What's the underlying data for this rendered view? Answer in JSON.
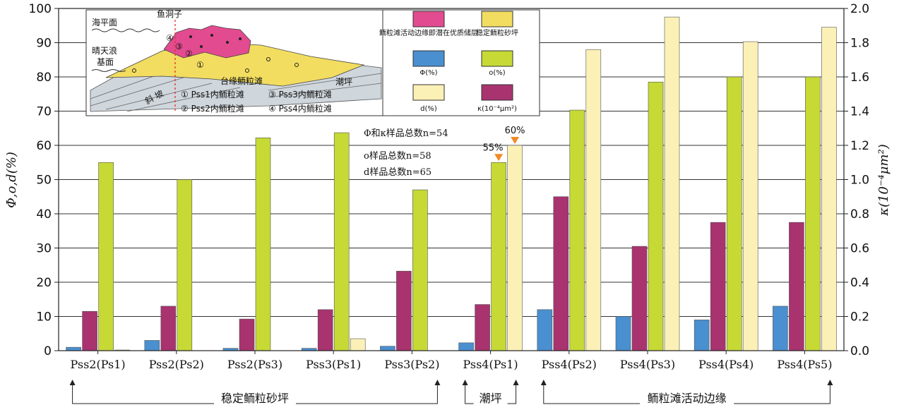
{
  "chart_data": {
    "type": "bar",
    "categories": [
      "Pss2(Ps1)",
      "Pss2(Ps2)",
      "Pss2(Ps3)",
      "Pss3(Ps1)",
      "Pss3(Ps2)",
      "Pss4(Ps1)",
      "Pss4(Ps2)",
      "Pss4(Ps3)",
      "Pss4(Ps4)",
      "Pss4(Ps5)"
    ],
    "series": [
      {
        "name": "Φ(%)",
        "axis": "left",
        "color": "#4a8fcf",
        "values": [
          1,
          3,
          0.7,
          0.7,
          1.3,
          2.3,
          12,
          10,
          9,
          13
        ]
      },
      {
        "name": "κ(10⁻⁴μm²)",
        "axis": "right",
        "color": "#a8336f",
        "values": [
          0.23,
          0.26,
          0.185,
          0.24,
          0.465,
          0.27,
          0.9,
          0.61,
          0.75,
          0.75
        ]
      },
      {
        "name": "o(%)",
        "axis": "left",
        "color": "#c6d935",
        "values": [
          55,
          50,
          62.2,
          63.7,
          47,
          55,
          70.3,
          78.5,
          80,
          80
        ]
      },
      {
        "name": "d(%)",
        "axis": "left",
        "color": "#fbf0b6",
        "values": [
          0.2,
          0,
          0,
          3.5,
          0,
          60,
          88,
          97.5,
          90.3,
          94.5
        ]
      }
    ],
    "yleft": {
      "label": "Φ,o,d(%)",
      "ylim": [
        0,
        100
      ],
      "ticks": [
        "0",
        "10",
        "20",
        "30",
        "40",
        "50",
        "60",
        "70",
        "80",
        "90",
        "100"
      ]
    },
    "yright": {
      "label": "κ(10⁻⁴μm²)",
      "ylim": [
        0,
        2
      ],
      "ticks": [
        "0.0",
        "0.2",
        "0.4",
        "0.6",
        "0.8",
        "1.0",
        "1.2",
        "1.4",
        "1.6",
        "1.8",
        "2.0"
      ]
    },
    "grid": true,
    "annotations": [
      {
        "text": "55%",
        "category": 5,
        "series": 2
      },
      {
        "text": "60%",
        "category": 5,
        "series": 3
      }
    ],
    "notes": [
      "Φ和κ样品总数n=54",
      "o样品总数n=58",
      "d样品总数n=65"
    ],
    "groups": [
      {
        "label": "稳定鲕粒砂坪",
        "from": 0,
        "to": 4
      },
      {
        "label": "潮坪",
        "from": 5,
        "to": 5
      },
      {
        "label": "鲕粒滩活动边缘",
        "from": 6,
        "to": 9
      }
    ]
  },
  "legend": {
    "items": [
      {
        "label": "鲕粒滩活动边缘即潜在优质储层",
        "swatch": "#e24b8f"
      },
      {
        "label": "稳定鲕粒砂坪",
        "swatch": "#f2dd60"
      },
      {
        "label": "Φ(%)",
        "swatch": "#4a8fcf"
      },
      {
        "label": "o(%)",
        "swatch": "#c6d935"
      },
      {
        "label": "d(%)",
        "swatch": "#fbf0b6"
      },
      {
        "label": "κ(10⁻⁴μm²)",
        "swatch": "#a8336f"
      }
    ]
  },
  "inset": {
    "sea_level": "海平面",
    "wave_base_line1": "晴天浪",
    "wave_base_line2": "基面",
    "yudongzi": "鱼洞子",
    "platform": "台缘鲕粒滩",
    "tidal": "潮坪",
    "slope": "斜 坡",
    "key": [
      "① Pss1内鲕粒滩",
      "② Pss2内鲕粒滩",
      "③ Pss3内鲕粒滩",
      "④ Pss4内鲕粒滩"
    ],
    "markers": [
      "①",
      "②",
      "③",
      "④"
    ]
  }
}
